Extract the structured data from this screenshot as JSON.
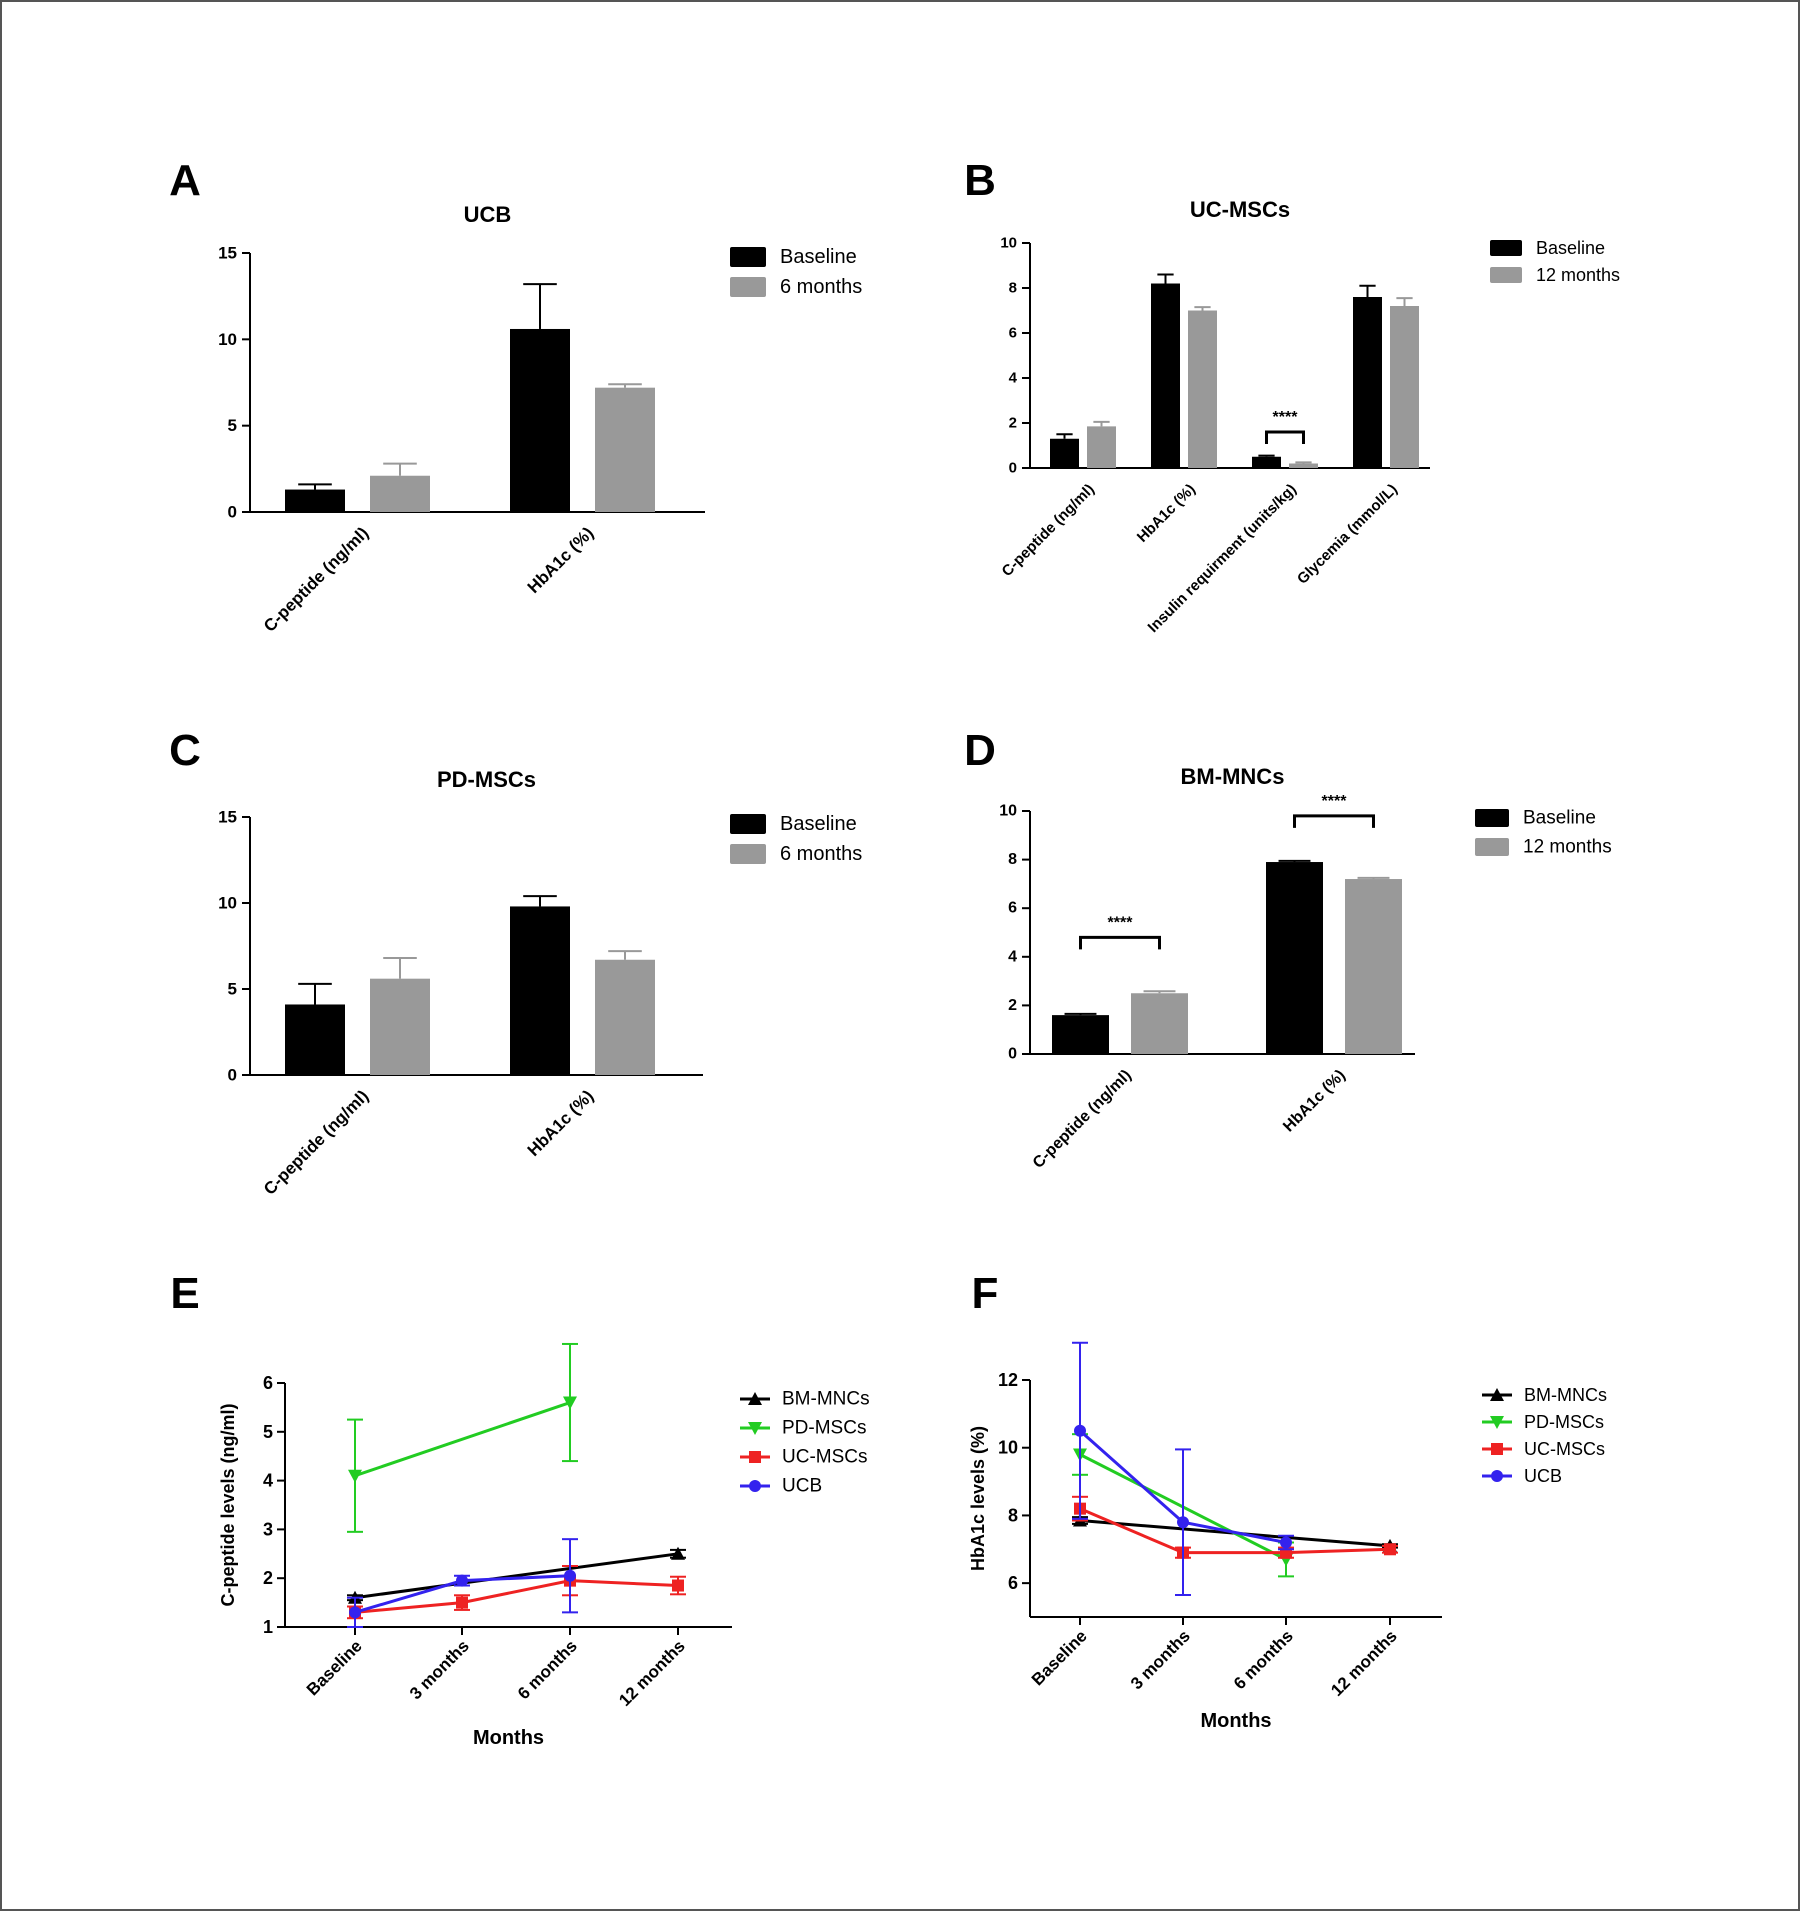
{
  "colors": {
    "border": "#555555",
    "baseline": "#000000",
    "followup": "#999999",
    "BM-MNCs": "#000000",
    "PD-MSCs": "#22cc22",
    "UC-MSCs": "#ee2222",
    "UCB": "#3322ee"
  },
  "chart_data": [
    {
      "panel": "A",
      "type": "bar",
      "title": "UCB",
      "categories": [
        "C-peptide (ng/ml)",
        "HbA1c (%)"
      ],
      "series": [
        {
          "name": "Baseline",
          "values": [
            1.3,
            10.6
          ],
          "errors": [
            0.3,
            2.6
          ]
        },
        {
          "name": "6 months",
          "values": [
            2.1,
            7.2
          ],
          "errors": [
            0.7,
            0.2
          ]
        }
      ],
      "ylim": [
        0,
        15
      ],
      "yticks": [
        "0",
        "5",
        "10",
        "15"
      ],
      "significance": []
    },
    {
      "panel": "B",
      "type": "bar",
      "title": "UC-MSCs",
      "categories": [
        "C-peptide (ng/ml)",
        "HbA1c (%)",
        "Insulin requirment (units/kg)",
        "Glycemia (mmol/L)"
      ],
      "series": [
        {
          "name": "Baseline",
          "values": [
            1.3,
            8.2,
            0.5,
            7.6
          ],
          "errors": [
            0.2,
            0.4,
            0.05,
            0.5
          ]
        },
        {
          "name": "12 months",
          "values": [
            1.85,
            7.0,
            0.2,
            7.2
          ],
          "errors": [
            0.2,
            0.15,
            0.05,
            0.35
          ]
        }
      ],
      "ylim": [
        0,
        10
      ],
      "yticks": [
        "0",
        "2",
        "4",
        "6",
        "8",
        "10"
      ],
      "significance": [
        {
          "category": 2,
          "label": "****",
          "y": 1.6
        }
      ]
    },
    {
      "panel": "C",
      "type": "bar",
      "title": "PD-MSCs",
      "categories": [
        "C-peptide (ng/ml)",
        "HbA1c (%)"
      ],
      "series": [
        {
          "name": "Baseline",
          "values": [
            4.1,
            9.8
          ],
          "errors": [
            1.2,
            0.6
          ]
        },
        {
          "name": "6 months",
          "values": [
            5.6,
            6.7
          ],
          "errors": [
            1.2,
            0.5
          ]
        }
      ],
      "ylim": [
        0,
        15
      ],
      "yticks": [
        "0",
        "5",
        "10",
        "15"
      ],
      "significance": []
    },
    {
      "panel": "D",
      "type": "bar",
      "title": "BM-MNCs",
      "categories": [
        "C-peptide (ng/ml)",
        "HbA1c (%)"
      ],
      "series": [
        {
          "name": "Baseline",
          "values": [
            1.6,
            7.9
          ],
          "errors": [
            0.05,
            0.05
          ]
        },
        {
          "name": "12 months",
          "values": [
            2.5,
            7.2
          ],
          "errors": [
            0.08,
            0.05
          ]
        }
      ],
      "ylim": [
        0,
        10
      ],
      "yticks": [
        "0",
        "2",
        "4",
        "6",
        "8",
        "10"
      ],
      "significance": [
        {
          "category": 0,
          "label": "****",
          "y": 4.8
        },
        {
          "category": 1,
          "label": "****",
          "y": 9.8
        }
      ]
    },
    {
      "panel": "E",
      "type": "line",
      "title": "",
      "x": [
        "Baseline",
        "3 months",
        "6 months",
        "12 months"
      ],
      "xlabel": "Months",
      "ylabel": "C-peptide levels (ng/ml)",
      "ylim": [
        1,
        6
      ],
      "yticks": [
        "1",
        "2",
        "3",
        "4",
        "5",
        "6"
      ],
      "series": [
        {
          "name": "BM-MNCs",
          "marker": "triangle-up",
          "points": [
            [
              0,
              1.6,
              0.05
            ],
            [
              3,
              2.5,
              0.08
            ]
          ]
        },
        {
          "name": "PD-MSCs",
          "marker": "triangle-down",
          "points": [
            [
              0,
              4.1,
              1.15
            ],
            [
              2,
              5.6,
              1.2
            ]
          ]
        },
        {
          "name": "UC-MSCs",
          "marker": "square",
          "points": [
            [
              0,
              1.3,
              0.12
            ],
            [
              1,
              1.5,
              0.15
            ],
            [
              2,
              1.95,
              0.3
            ],
            [
              3,
              1.85,
              0.18
            ]
          ]
        },
        {
          "name": "UCB",
          "marker": "circle",
          "points": [
            [
              0,
              1.3,
              0.3
            ],
            [
              1,
              1.95,
              0.1
            ],
            [
              2,
              2.05,
              0.75
            ]
          ]
        }
      ]
    },
    {
      "panel": "F",
      "type": "line",
      "title": "",
      "x": [
        "Baseline",
        "3 months",
        "6 months",
        "12 months"
      ],
      "xlabel": "Months",
      "ylabel": "HbA1c levels (%)",
      "ylim": [
        5,
        12
      ],
      "yticks": [
        "6",
        "8",
        "10",
        "12"
      ],
      "series": [
        {
          "name": "BM-MNCs",
          "marker": "triangle-up",
          "points": [
            [
              0,
              7.85,
              0.1
            ],
            [
              3,
              7.1,
              0.05
            ]
          ]
        },
        {
          "name": "PD-MSCs",
          "marker": "triangle-down",
          "points": [
            [
              0,
              9.8,
              0.6
            ],
            [
              2,
              6.7,
              0.5
            ]
          ]
        },
        {
          "name": "UC-MSCs",
          "marker": "square",
          "points": [
            [
              0,
              8.2,
              0.35
            ],
            [
              1,
              6.9,
              0.15
            ],
            [
              2,
              6.9,
              0.15
            ],
            [
              3,
              7.0,
              0.1
            ]
          ]
        },
        {
          "name": "UCB",
          "marker": "circle",
          "points": [
            [
              0,
              10.5,
              2.6
            ],
            [
              1,
              7.8,
              2.15
            ],
            [
              2,
              7.2,
              0.2
            ]
          ]
        }
      ]
    }
  ]
}
